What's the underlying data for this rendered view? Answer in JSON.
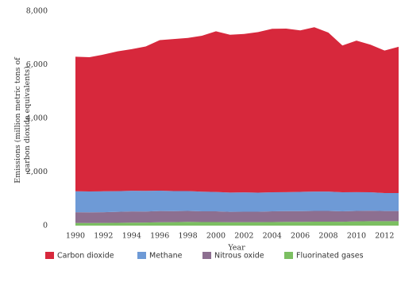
{
  "chart_data": {
    "type": "stacked-area",
    "y_label": [
      "Emissions (million metric tons of",
      "carbon dioxide equivalents)"
    ],
    "x_label": "Year",
    "x": [
      1990,
      1991,
      1992,
      1993,
      1994,
      1995,
      1996,
      1997,
      1998,
      1999,
      2000,
      2001,
      2002,
      2003,
      2004,
      2005,
      2006,
      2007,
      2008,
      2009,
      2010,
      2011,
      2012,
      2013
    ],
    "series": [
      {
        "name": "Fluorinated gases",
        "color": "#7cbf62",
        "values": [
          100,
          95,
          100,
          105,
          110,
          115,
          125,
          130,
          140,
          135,
          135,
          125,
          130,
          130,
          135,
          140,
          140,
          150,
          150,
          145,
          160,
          165,
          165,
          165
        ]
      },
      {
        "name": "Nitrous oxide",
        "color": "#8d6f90",
        "values": [
          400,
          400,
          400,
          410,
          420,
          410,
          420,
          410,
          410,
          400,
          400,
          390,
          390,
          390,
          400,
          400,
          400,
          400,
          400,
          390,
          390,
          390,
          380,
          380
        ]
      },
      {
        "name": "Methane",
        "color": "#6e9ad6",
        "values": [
          780,
          780,
          780,
          770,
          770,
          770,
          760,
          750,
          740,
          730,
          720,
          720,
          720,
          710,
          710,
          710,
          720,
          720,
          720,
          710,
          700,
          690,
          670,
          670
        ]
      },
      {
        "name": "Carbon dioxide",
        "color": "#d7283c",
        "values": [
          5020,
          5005,
          5100,
          5215,
          5280,
          5385,
          5615,
          5670,
          5710,
          5815,
          5995,
          5885,
          5910,
          5990,
          6095,
          6100,
          6020,
          6130,
          5930,
          5475,
          5650,
          5505,
          5315,
          5455
        ]
      }
    ],
    "legend_order": [
      3,
      2,
      1,
      0
    ],
    "xlim": [
      1990,
      2013
    ],
    "xticks": [
      1990,
      1992,
      1994,
      1996,
      1998,
      2000,
      2002,
      2004,
      2006,
      2008,
      2010,
      2012
    ],
    "ylim": [
      0,
      8000
    ],
    "yticks": [
      0,
      {
        "value": 2000,
        "label": "2,000"
      },
      {
        "value": 4000,
        "label": "4,000"
      },
      {
        "value": 6000,
        "label": "6,000"
      },
      {
        "value": 8000,
        "label": "8,000"
      }
    ]
  }
}
